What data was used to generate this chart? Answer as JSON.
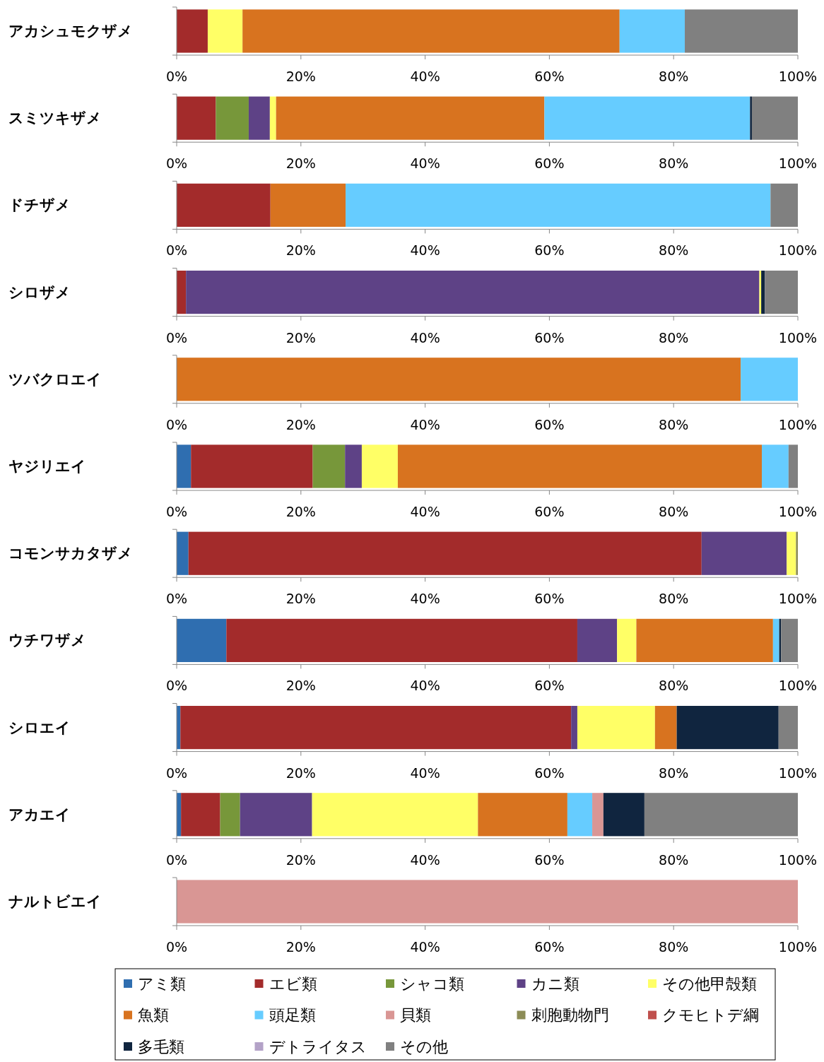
{
  "chart_data": [
    {
      "type": "bar",
      "orientation": "horizontal",
      "stacked": true,
      "categories": [
        "アカシュモクザメ"
      ],
      "xlim": [
        0,
        100
      ],
      "xticks": [
        {
          "value": 0,
          "label": "0%"
        },
        {
          "value": 20,
          "label": "20%"
        },
        {
          "value": 40,
          "label": "40%"
        },
        {
          "value": 60,
          "label": "60%"
        },
        {
          "value": 80,
          "label": "80%"
        },
        {
          "value": 100,
          "label": "100%"
        }
      ],
      "series": [
        {
          "color": "#a32b2b",
          "values": [
            5.0
          ]
        },
        {
          "color": "#ffff66",
          "values": [
            5.6
          ]
        },
        {
          "color": "#d8731f",
          "values": [
            60.7
          ]
        },
        {
          "color": "#66ccff",
          "values": [
            10.5
          ]
        },
        {
          "color": "#808080",
          "values": [
            18.2
          ]
        }
      ]
    },
    {
      "type": "bar",
      "orientation": "horizontal",
      "stacked": true,
      "categories": [
        "スミツキザメ"
      ],
      "xlim": [
        0,
        100
      ],
      "xticks": [
        {
          "value": 0,
          "label": "0%"
        },
        {
          "value": 20,
          "label": "20%"
        },
        {
          "value": 40,
          "label": "40%"
        },
        {
          "value": 60,
          "label": "60%"
        },
        {
          "value": 80,
          "label": "80%"
        },
        {
          "value": 100,
          "label": "100%"
        }
      ],
      "series": [
        {
          "color": "#a32b2b",
          "values": [
            6.3
          ]
        },
        {
          "color": "#77973a",
          "values": [
            5.3
          ]
        },
        {
          "color": "#5e4286",
          "values": [
            3.4
          ]
        },
        {
          "color": "#ffff66",
          "values": [
            1.0
          ]
        },
        {
          "color": "#d8731f",
          "values": [
            43.2
          ]
        },
        {
          "color": "#66ccff",
          "values": [
            33.1
          ]
        },
        {
          "color": "#10253f",
          "values": [
            0.3
          ]
        },
        {
          "color": "#808080",
          "values": [
            7.4
          ]
        }
      ]
    },
    {
      "type": "bar",
      "orientation": "horizontal",
      "stacked": true,
      "categories": [
        "ドチザメ"
      ],
      "xlim": [
        0,
        100
      ],
      "xticks": [
        {
          "value": 0,
          "label": "0%"
        },
        {
          "value": 20,
          "label": "20%"
        },
        {
          "value": 40,
          "label": "40%"
        },
        {
          "value": 60,
          "label": "60%"
        },
        {
          "value": 80,
          "label": "80%"
        },
        {
          "value": 100,
          "label": "100%"
        }
      ],
      "series": [
        {
          "color": "#a32b2b",
          "values": [
            15.1
          ]
        },
        {
          "color": "#d8731f",
          "values": [
            12.1
          ]
        },
        {
          "color": "#66ccff",
          "values": [
            68.4
          ]
        },
        {
          "color": "#808080",
          "values": [
            4.4
          ]
        }
      ]
    },
    {
      "type": "bar",
      "orientation": "horizontal",
      "stacked": true,
      "categories": [
        "シロザメ"
      ],
      "xlim": [
        0,
        100
      ],
      "xticks": [
        {
          "value": 0,
          "label": "0%"
        },
        {
          "value": 20,
          "label": "20%"
        },
        {
          "value": 40,
          "label": "40%"
        },
        {
          "value": 60,
          "label": "60%"
        },
        {
          "value": 80,
          "label": "80%"
        },
        {
          "value": 100,
          "label": "100%"
        }
      ],
      "series": [
        {
          "color": "#a32b2b",
          "values": [
            1.5
          ]
        },
        {
          "color": "#5e4286",
          "values": [
            92.3
          ]
        },
        {
          "color": "#ffff66",
          "values": [
            0.3
          ]
        },
        {
          "color": "#10253f",
          "values": [
            0.6
          ]
        },
        {
          "color": "#808080",
          "values": [
            5.3
          ]
        }
      ]
    },
    {
      "type": "bar",
      "orientation": "horizontal",
      "stacked": true,
      "categories": [
        "ツバクロエイ"
      ],
      "xlim": [
        0,
        100
      ],
      "xticks": [
        {
          "value": 0,
          "label": "0%"
        },
        {
          "value": 20,
          "label": "20%"
        },
        {
          "value": 40,
          "label": "40%"
        },
        {
          "value": 60,
          "label": "60%"
        },
        {
          "value": 80,
          "label": "80%"
        },
        {
          "value": 100,
          "label": "100%"
        }
      ],
      "series": [
        {
          "color": "#d8731f",
          "values": [
            90.8
          ]
        },
        {
          "color": "#66ccff",
          "values": [
            9.2
          ]
        }
      ]
    },
    {
      "type": "bar",
      "orientation": "horizontal",
      "stacked": true,
      "categories": [
        "ヤジリエイ"
      ],
      "xlim": [
        0,
        100
      ],
      "xticks": [
        {
          "value": 0,
          "label": "0%"
        },
        {
          "value": 20,
          "label": "20%"
        },
        {
          "value": 40,
          "label": "40%"
        },
        {
          "value": 60,
          "label": "60%"
        },
        {
          "value": 80,
          "label": "80%"
        },
        {
          "value": 100,
          "label": "100%"
        }
      ],
      "series": [
        {
          "color": "#2f6eb0",
          "values": [
            2.3
          ]
        },
        {
          "color": "#a32b2b",
          "values": [
            19.6
          ]
        },
        {
          "color": "#77973a",
          "values": [
            5.2
          ]
        },
        {
          "color": "#5e4286",
          "values": [
            2.7
          ]
        },
        {
          "color": "#ffff66",
          "values": [
            5.8
          ]
        },
        {
          "color": "#d8731f",
          "values": [
            58.6
          ]
        },
        {
          "color": "#66ccff",
          "values": [
            4.3
          ]
        },
        {
          "color": "#808080",
          "values": [
            1.5
          ]
        }
      ]
    },
    {
      "type": "bar",
      "orientation": "horizontal",
      "stacked": true,
      "categories": [
        "コモンサカタザメ"
      ],
      "xlim": [
        0,
        100
      ],
      "xticks": [
        {
          "value": 0,
          "label": "0%"
        },
        {
          "value": 20,
          "label": "20%"
        },
        {
          "value": 40,
          "label": "40%"
        },
        {
          "value": 60,
          "label": "60%"
        },
        {
          "value": 80,
          "label": "80%"
        },
        {
          "value": 100,
          "label": "100%"
        }
      ],
      "series": [
        {
          "color": "#2f6eb0",
          "values": [
            1.9
          ]
        },
        {
          "color": "#a32b2b",
          "values": [
            82.6
          ]
        },
        {
          "color": "#5e4286",
          "values": [
            13.7
          ]
        },
        {
          "color": "#ffff66",
          "values": [
            1.5
          ]
        },
        {
          "color": "#8c8c56",
          "values": [
            0.3
          ]
        }
      ]
    },
    {
      "type": "bar",
      "orientation": "horizontal",
      "stacked": true,
      "categories": [
        "ウチワザメ"
      ],
      "xlim": [
        0,
        100
      ],
      "xticks": [
        {
          "value": 0,
          "label": "0%"
        },
        {
          "value": 20,
          "label": "20%"
        },
        {
          "value": 40,
          "label": "40%"
        },
        {
          "value": 60,
          "label": "60%"
        },
        {
          "value": 80,
          "label": "80%"
        },
        {
          "value": 100,
          "label": "100%"
        }
      ],
      "series": [
        {
          "color": "#2f6eb0",
          "values": [
            8.0
          ]
        },
        {
          "color": "#a32b2b",
          "values": [
            56.5
          ]
        },
        {
          "color": "#5e4286",
          "values": [
            6.4
          ]
        },
        {
          "color": "#ffff66",
          "values": [
            3.1
          ]
        },
        {
          "color": "#d8731f",
          "values": [
            22.0
          ]
        },
        {
          "color": "#66ccff",
          "values": [
            1.0
          ]
        },
        {
          "color": "#10253f",
          "values": [
            0.3
          ]
        },
        {
          "color": "#808080",
          "values": [
            2.7
          ]
        }
      ]
    },
    {
      "type": "bar",
      "orientation": "horizontal",
      "stacked": true,
      "categories": [
        "シロエイ"
      ],
      "xlim": [
        0,
        100
      ],
      "xticks": [
        {
          "value": 0,
          "label": "0%"
        },
        {
          "value": 20,
          "label": "20%"
        },
        {
          "value": 40,
          "label": "40%"
        },
        {
          "value": 60,
          "label": "60%"
        },
        {
          "value": 80,
          "label": "80%"
        },
        {
          "value": 100,
          "label": "100%"
        }
      ],
      "series": [
        {
          "color": "#2f6eb0",
          "values": [
            0.6
          ]
        },
        {
          "color": "#a32b2b",
          "values": [
            62.9
          ]
        },
        {
          "color": "#5e4286",
          "values": [
            1.0
          ]
        },
        {
          "color": "#ffff66",
          "values": [
            12.5
          ]
        },
        {
          "color": "#d8731f",
          "values": [
            3.5
          ]
        },
        {
          "color": "#10253f",
          "values": [
            16.4
          ]
        },
        {
          "color": "#808080",
          "values": [
            3.1
          ]
        }
      ]
    },
    {
      "type": "bar",
      "orientation": "horizontal",
      "stacked": true,
      "categories": [
        "アカエイ"
      ],
      "xlim": [
        0,
        100
      ],
      "xticks": [
        {
          "value": 0,
          "label": "0%"
        },
        {
          "value": 20,
          "label": "20%"
        },
        {
          "value": 40,
          "label": "40%"
        },
        {
          "value": 60,
          "label": "60%"
        },
        {
          "value": 80,
          "label": "80%"
        },
        {
          "value": 100,
          "label": "100%"
        }
      ],
      "series": [
        {
          "color": "#2f6eb0",
          "values": [
            0.7
          ]
        },
        {
          "color": "#a32b2b",
          "values": [
            6.3
          ]
        },
        {
          "color": "#77973a",
          "values": [
            3.2
          ]
        },
        {
          "color": "#5e4286",
          "values": [
            11.6
          ]
        },
        {
          "color": "#ffff66",
          "values": [
            26.7
          ]
        },
        {
          "color": "#d8731f",
          "values": [
            14.4
          ]
        },
        {
          "color": "#66ccff",
          "values": [
            4.0
          ]
        },
        {
          "color": "#d99694",
          "values": [
            1.8
          ]
        },
        {
          "color": "#10253f",
          "values": [
            6.6
          ]
        },
        {
          "color": "#808080",
          "values": [
            24.7
          ]
        }
      ]
    },
    {
      "type": "bar",
      "orientation": "horizontal",
      "stacked": true,
      "categories": [
        "ナルトビエイ"
      ],
      "xlim": [
        0,
        100
      ],
      "xticks": [
        {
          "value": 0,
          "label": "0%"
        },
        {
          "value": 20,
          "label": "20%"
        },
        {
          "value": 40,
          "label": "40%"
        },
        {
          "value": 60,
          "label": "60%"
        },
        {
          "value": 80,
          "label": "80%"
        },
        {
          "value": 100,
          "label": "100%"
        }
      ],
      "legend": "bottom",
      "series": [
        {
          "name": "アミ類",
          "color": "#2f6eb0",
          "values": [
            null
          ]
        },
        {
          "name": "エビ類",
          "color": "#a32b2b",
          "values": [
            null
          ]
        },
        {
          "name": "シャコ類",
          "color": "#77973a",
          "values": [
            null
          ]
        },
        {
          "name": "カニ類",
          "color": "#5e4286",
          "values": [
            null
          ]
        },
        {
          "name": "その他甲殻類",
          "color": "#ffff66",
          "values": [
            null
          ]
        },
        {
          "name": "魚類",
          "color": "#d8731f",
          "values": [
            null
          ]
        },
        {
          "name": "頭足類",
          "color": "#66ccff",
          "values": [
            null
          ]
        },
        {
          "name": "貝類",
          "color": "#d99694",
          "values": [
            100
          ]
        },
        {
          "name": "刺胞動物門",
          "color": "#8c8c56",
          "values": [
            null
          ]
        },
        {
          "name": "クモヒトデ綱",
          "color": "#c0504d",
          "values": [
            null
          ]
        },
        {
          "name": "多毛類",
          "color": "#10253f",
          "values": [
            null
          ]
        },
        {
          "name": "デトライタス",
          "color": "#b3a2c7",
          "values": [
            null
          ]
        },
        {
          "name": "その他",
          "color": "#808080",
          "values": [
            null
          ]
        }
      ]
    }
  ]
}
